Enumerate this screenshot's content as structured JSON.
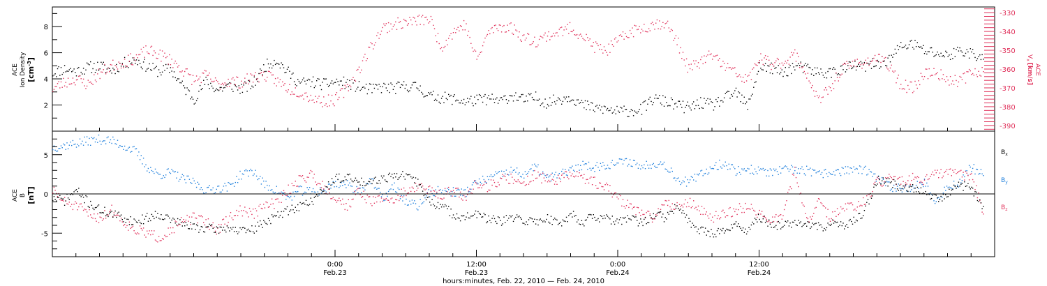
{
  "colors": {
    "black": "#000000",
    "red": "#e0305a",
    "blue": "#1e7fdc"
  },
  "chart_data": [
    {
      "type": "scatter",
      "panel": "top",
      "left_axis": {
        "label_line1": "ACE",
        "label_line2": "Ion Density",
        "unit_text": "[cm",
        "unit_sup": "-3",
        "unit_close": "]",
        "ylim": [
          0,
          9.5
        ],
        "ticks": [
          2,
          4,
          6,
          8
        ],
        "color": "#000000"
      },
      "right_axis": {
        "label_line1": "ACE",
        "label_var": "V",
        "label_sub": "x",
        "label_unit": "[km/s]",
        "ylim": [
          -393,
          -327
        ],
        "ticks": [
          -330,
          -340,
          -350,
          -360,
          -370,
          -380,
          -390
        ],
        "color": "#e0305a"
      },
      "series": [
        {
          "color": "#000000",
          "x_hours": [
            0,
            1,
            2,
            3,
            4,
            5,
            6,
            7,
            8,
            9,
            10,
            11,
            12,
            13,
            14,
            15,
            16,
            17,
            18,
            19,
            20,
            21,
            22,
            23,
            24,
            25,
            26,
            27,
            28,
            29,
            30,
            31,
            32,
            33,
            34,
            35,
            36,
            37,
            38,
            39,
            40,
            41,
            42,
            43,
            44,
            45,
            46,
            47,
            48,
            49,
            50,
            51,
            52,
            53,
            54,
            55,
            56,
            57,
            58,
            59,
            60,
            61,
            62,
            63,
            64,
            65,
            66,
            67,
            68,
            69,
            70,
            71,
            72,
            73,
            74,
            75,
            76,
            77,
            78,
            79
          ],
          "values": [
            4.5,
            4.8,
            4.6,
            4.9,
            5.0,
            4.7,
            5.2,
            5.5,
            5.0,
            4.6,
            4.8,
            3.5,
            2.5,
            3.8,
            3.2,
            3.5,
            3.3,
            3.6,
            5.0,
            5.5,
            4.5,
            3.7,
            3.8,
            3.6,
            3.8,
            3.7,
            3.4,
            3.2,
            3.4,
            3.3,
            3.5,
            3.4,
            2.7,
            2.6,
            2.5,
            2.3,
            2.4,
            2.5,
            2.3,
            2.8,
            2.4,
            2.6,
            2.2,
            2.5,
            2.7,
            2.0,
            1.8,
            1.7,
            1.5,
            1.6,
            1.7,
            2.5,
            2.3,
            2.0,
            1.8,
            2.2,
            2.0,
            2.5,
            3.0,
            1.9,
            5.0,
            4.8,
            4.5,
            5.0,
            4.8,
            4.5,
            4.5,
            4.8,
            5.0,
            5.0,
            5.2,
            5.5,
            6.5,
            6.7,
            6.2,
            6.0,
            5.8,
            6.2,
            6.0,
            5.5
          ]
        },
        {
          "color": "#e0305a",
          "axis": "right",
          "x_hours": [
            0,
            1,
            2,
            3,
            4,
            5,
            6,
            7,
            8,
            9,
            10,
            11,
            12,
            13,
            14,
            15,
            16,
            17,
            18,
            19,
            20,
            21,
            22,
            23,
            24,
            25,
            26,
            27,
            28,
            29,
            30,
            31,
            32,
            33,
            34,
            35,
            36,
            37,
            38,
            39,
            40,
            41,
            42,
            43,
            44,
            45,
            46,
            47,
            48,
            49,
            50,
            51,
            52,
            53,
            54,
            55,
            56,
            57,
            58,
            59,
            60,
            61,
            62,
            63,
            64,
            65,
            66,
            67,
            68,
            69,
            70,
            71,
            72,
            73,
            74,
            75,
            76,
            77,
            78,
            79
          ],
          "values": [
            -370,
            -367,
            -365,
            -368,
            -362,
            -358,
            -356,
            -354,
            -350,
            -352,
            -355,
            -360,
            -366,
            -363,
            -368,
            -366,
            -367,
            -364,
            -363,
            -366,
            -370,
            -372,
            -375,
            -377,
            -376,
            -370,
            -360,
            -348,
            -338,
            -336,
            -335,
            -334,
            -333,
            -348,
            -340,
            -336,
            -355,
            -340,
            -337,
            -338,
            -343,
            -345,
            -342,
            -340,
            -338,
            -342,
            -348,
            -350,
            -345,
            -340,
            -338,
            -336,
            -335,
            -345,
            -360,
            -356,
            -352,
            -358,
            -362,
            -366,
            -354,
            -357,
            -356,
            -352,
            -362,
            -377,
            -370,
            -360,
            -357,
            -356,
            -354,
            -358,
            -368,
            -370,
            -362,
            -362,
            -365,
            -366,
            -362,
            -360
          ]
        }
      ]
    },
    {
      "type": "scatter",
      "panel": "bottom",
      "left_axis": {
        "label_line1": "ACE",
        "label_line2": "B",
        "unit_text": "[nT]",
        "ylim": [
          -8,
          8
        ],
        "ticks": [
          -5,
          0,
          5
        ],
        "color": "#000000"
      },
      "legend": {
        "placement": "right",
        "entries": [
          {
            "var": "B",
            "sub": "x",
            "color": "#000000"
          },
          {
            "var": "B",
            "sub": "y",
            "color": "#1e7fdc"
          },
          {
            "var": "B",
            "sub": "z",
            "color": "#e0305a"
          }
        ]
      },
      "series": [
        {
          "name": "Bx",
          "color": "#000000",
          "x_hours": [
            0,
            1,
            2,
            3,
            4,
            5,
            6,
            7,
            8,
            9,
            10,
            11,
            12,
            13,
            14,
            15,
            16,
            17,
            18,
            19,
            20,
            21,
            22,
            23,
            24,
            25,
            26,
            27,
            28,
            29,
            30,
            31,
            32,
            33,
            34,
            35,
            36,
            37,
            38,
            39,
            40,
            41,
            42,
            43,
            44,
            45,
            46,
            47,
            48,
            49,
            50,
            51,
            52,
            53,
            54,
            55,
            56,
            57,
            58,
            59,
            60,
            61,
            62,
            63,
            64,
            65,
            66,
            67,
            68,
            69,
            70,
            71,
            72,
            73,
            74,
            75,
            76,
            77,
            78,
            79
          ],
          "values": [
            -0.5,
            -0.8,
            0.5,
            -1.0,
            -2.0,
            -2.5,
            -3.0,
            -3.5,
            -3.0,
            -2.5,
            -3.2,
            -3.8,
            -4.2,
            -4.3,
            -4.5,
            -4.2,
            -4.8,
            -4.5,
            -3.5,
            -2.8,
            -2.0,
            -1.5,
            -0.8,
            0.5,
            2.0,
            2.2,
            1.5,
            1.8,
            2.0,
            2.5,
            2.3,
            1.5,
            -1.0,
            -1.5,
            -2.5,
            -3.0,
            -2.5,
            -3.2,
            -3.5,
            -3.0,
            -3.3,
            -3.5,
            -3.0,
            -3.8,
            -2.5,
            -3.5,
            -2.8,
            -3.2,
            -3.5,
            -3.0,
            -3.8,
            -2.5,
            -3.0,
            -1.5,
            -3.5,
            -4.5,
            -5.0,
            -4.5,
            -4.0,
            -4.5,
            -3.0,
            -3.8,
            -4.0,
            -3.5,
            -4.0,
            -4.2,
            -3.8,
            -4.0,
            -3.5,
            -2.0,
            1.8,
            1.5,
            1.0,
            0.8,
            0.5,
            -0.5,
            0.0,
            1.2,
            0.8,
            -1.5
          ]
        },
        {
          "name": "By",
          "color": "#1e7fdc",
          "x_hours": [
            0,
            1,
            2,
            3,
            4,
            5,
            6,
            7,
            8,
            9,
            10,
            11,
            12,
            13,
            14,
            15,
            16,
            17,
            18,
            19,
            20,
            21,
            22,
            23,
            24,
            25,
            26,
            27,
            28,
            29,
            30,
            31,
            32,
            33,
            34,
            35,
            36,
            37,
            38,
            39,
            40,
            41,
            42,
            43,
            44,
            45,
            46,
            47,
            48,
            49,
            50,
            51,
            52,
            53,
            54,
            55,
            56,
            57,
            58,
            59,
            60,
            61,
            62,
            63,
            64,
            65,
            66,
            67,
            68,
            69,
            70,
            71,
            72,
            73,
            74,
            75,
            76,
            77,
            78,
            79
          ],
          "values": [
            6.0,
            6.2,
            6.5,
            6.8,
            7.0,
            6.8,
            6.2,
            5.5,
            3.5,
            2.5,
            2.8,
            2.0,
            1.5,
            0.5,
            0.8,
            1.0,
            2.5,
            3.0,
            1.2,
            0.5,
            -0.5,
            0.5,
            0.3,
            0.5,
            1.5,
            1.2,
            0.5,
            1.8,
            -0.5,
            1.0,
            -1.0,
            -1.5,
            0.2,
            0.5,
            0.3,
            0.2,
            1.5,
            2.0,
            2.5,
            3.0,
            2.5,
            3.5,
            2.0,
            2.5,
            3.0,
            3.8,
            3.5,
            3.8,
            4.0,
            4.2,
            3.5,
            4.0,
            3.8,
            2.0,
            1.5,
            2.5,
            3.5,
            4.0,
            3.0,
            3.2,
            3.0,
            2.8,
            3.0,
            3.2,
            3.0,
            2.5,
            2.8,
            3.0,
            3.2,
            3.0,
            2.0,
            1.0,
            0.8,
            1.0,
            1.5,
            -1.0,
            1.0,
            1.5,
            3.5,
            2.5
          ]
        },
        {
          "name": "Bz",
          "color": "#e0305a",
          "x_hours": [
            0,
            1,
            2,
            3,
            4,
            5,
            6,
            7,
            8,
            9,
            10,
            11,
            12,
            13,
            14,
            15,
            16,
            17,
            18,
            19,
            20,
            21,
            22,
            23,
            24,
            25,
            26,
            27,
            28,
            29,
            30,
            31,
            32,
            33,
            34,
            35,
            36,
            37,
            38,
            39,
            40,
            41,
            42,
            43,
            44,
            45,
            46,
            47,
            48,
            49,
            50,
            51,
            52,
            53,
            54,
            55,
            56,
            57,
            58,
            59,
            60,
            61,
            62,
            63,
            64,
            65,
            66,
            67,
            68,
            69,
            70,
            71,
            72,
            73,
            74,
            75,
            76,
            77,
            78,
            79
          ],
          "values": [
            0.5,
            -1.0,
            -1.5,
            -2.5,
            -3.0,
            -2.0,
            -3.5,
            -4.5,
            -5.0,
            -5.5,
            -4.5,
            -3.5,
            -3.0,
            -3.5,
            -4.5,
            -3.0,
            -2.0,
            -2.5,
            -1.5,
            -1.0,
            0.5,
            2.0,
            2.5,
            1.0,
            -0.5,
            -1.5,
            0.5,
            -1.0,
            -0.5,
            -0.8,
            0.5,
            1.0,
            0.5,
            0.0,
            0.5,
            -0.5,
            1.5,
            1.0,
            1.8,
            2.0,
            1.5,
            2.5,
            1.8,
            2.0,
            2.5,
            2.2,
            1.5,
            1.0,
            -0.5,
            -1.5,
            -2.5,
            -3.0,
            -1.0,
            -1.5,
            -1.0,
            -2.0,
            -3.0,
            -2.5,
            -2.0,
            -1.5,
            -2.5,
            -3.5,
            -2.5,
            3.0,
            -3.5,
            -1.0,
            -3.0,
            -2.0,
            -1.5,
            -1.0,
            1.5,
            2.0,
            1.5,
            2.0,
            1.8,
            2.5,
            2.8,
            2.5,
            2.5,
            -2.5
          ]
        }
      ]
    }
  ],
  "x_axis": {
    "x_range_hours": [
      0,
      80
    ],
    "ticks": [
      {
        "hours": 24,
        "time": "0:00",
        "date": "Feb.23"
      },
      {
        "hours": 36,
        "time": "12:00",
        "date": "Feb.23"
      },
      {
        "hours": 48,
        "time": "0:00",
        "date": "Feb.24"
      },
      {
        "hours": 60,
        "time": "12:00",
        "date": "Feb.24"
      }
    ],
    "caption": "hours:minutes, Feb. 22, 2010 — Feb. 24, 2010"
  }
}
